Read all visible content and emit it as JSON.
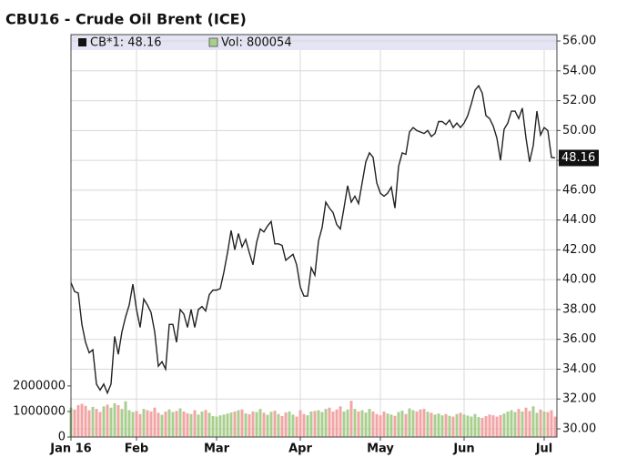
{
  "chart_data": {
    "type": "line",
    "title": "CBU16 - Crude Oil Brent (ICE)",
    "x": [
      0,
      1,
      2,
      3,
      4,
      5,
      6,
      7,
      8,
      9,
      10,
      11,
      12,
      13,
      14,
      15,
      16,
      17,
      18,
      19,
      20,
      21,
      22,
      23,
      24,
      25,
      26,
      27,
      28,
      29,
      30,
      31,
      32,
      33,
      34,
      35,
      36,
      37,
      38,
      39,
      40,
      41,
      42,
      43,
      44,
      45,
      46,
      47,
      48,
      49,
      50,
      51,
      52,
      53,
      54,
      55,
      56,
      57,
      58,
      59,
      60,
      61,
      62,
      63,
      64,
      65,
      66,
      67,
      68,
      69,
      70,
      71,
      72,
      73,
      74,
      75,
      76,
      77,
      78,
      79,
      80,
      81,
      82,
      83,
      84,
      85,
      86,
      87,
      88,
      89,
      90,
      91,
      92,
      93,
      94,
      95,
      96,
      97,
      98,
      99,
      100,
      101,
      102,
      103,
      104,
      105,
      106,
      107,
      108,
      109,
      110,
      111,
      112,
      113,
      114,
      115,
      116,
      117,
      118,
      119,
      120,
      121,
      122,
      123,
      124,
      125,
      126,
      127,
      128,
      129,
      130,
      131,
      132,
      133
    ],
    "series": [
      {
        "name": "CB*1: 48.16",
        "color": "#222222",
        "values": [
          39.8,
          39.2,
          39.1,
          37.0,
          35.8,
          35.1,
          35.3,
          33.0,
          32.6,
          33.0,
          32.4,
          33.0,
          36.2,
          35.0,
          36.5,
          37.5,
          38.3,
          39.7,
          38.0,
          36.8,
          38.7,
          38.3,
          37.8,
          36.5,
          34.2,
          34.5,
          34.0,
          37.0,
          37.0,
          35.8,
          38.0,
          37.7,
          36.8,
          38.0,
          36.8,
          38.0,
          38.2,
          37.9,
          39.0,
          39.3,
          39.3,
          39.4,
          40.5,
          41.8,
          43.3,
          42.0,
          43.1,
          42.2,
          42.7,
          41.8,
          41.0,
          42.5,
          43.4,
          43.2,
          43.6,
          43.9,
          42.4,
          42.4,
          42.3,
          41.3,
          41.5,
          41.7,
          41.0,
          39.5,
          38.9,
          38.9,
          40.8,
          40.3,
          42.6,
          43.5,
          45.2,
          44.8,
          44.5,
          43.7,
          43.4,
          44.8,
          46.3,
          45.2,
          45.6,
          45.1,
          46.5,
          47.9,
          48.5,
          48.2,
          46.5,
          45.8,
          45.6,
          45.8,
          46.2,
          44.8,
          47.6,
          48.5,
          48.4,
          49.9,
          50.2,
          50.0,
          49.9,
          49.8,
          50.0,
          49.6,
          49.8,
          50.6,
          50.6,
          50.4,
          50.7,
          50.2,
          50.5,
          50.2,
          50.5,
          51.0,
          51.8,
          52.7,
          53.0,
          52.5,
          51.0,
          50.8,
          50.3,
          49.5,
          48.0,
          50.1,
          50.5,
          51.3,
          51.3,
          50.8,
          51.5,
          49.5,
          47.9,
          49.0,
          51.3,
          49.7,
          50.2,
          50.0,
          48.2,
          48.16
        ]
      },
      {
        "name": "Vol: 800054",
        "type": "bar",
        "axis": "y2",
        "up_color": "#a9cf8f",
        "down_color": "#f2a5a5",
        "values": [
          1150000,
          1080000,
          1250000,
          1300000,
          1220000,
          1050000,
          1180000,
          1100000,
          980000,
          1200000,
          1270000,
          1150000,
          1320000,
          1250000,
          1100000,
          1400000,
          1050000,
          980000,
          1020000,
          900000,
          1100000,
          1050000,
          1000000,
          1150000,
          950000,
          870000,
          1000000,
          1080000,
          980000,
          1020000,
          1120000,
          1000000,
          930000,
          900000,
          1050000,
          880000,
          1000000,
          1060000,
          950000,
          820000,
          800000,
          850000,
          880000,
          920000,
          960000,
          1000000,
          1050000,
          1080000,
          930000,
          890000,
          1000000,
          980000,
          1100000,
          950000,
          870000,
          990000,
          1030000,
          900000,
          820000,
          960000,
          1000000,
          880000,
          800000,
          1050000,
          900000,
          850000,
          1000000,
          1020000,
          1050000,
          980000,
          1100000,
          1150000,
          1000000,
          1080000,
          1200000,
          1000000,
          1080000,
          1420000,
          1100000,
          1000000,
          1050000,
          960000,
          1100000,
          1000000,
          900000,
          850000,
          1000000,
          920000,
          880000,
          830000,
          980000,
          1030000,
          900000,
          1120000,
          1050000,
          1000000,
          1080000,
          1100000,
          990000,
          950000,
          880000,
          920000,
          850000,
          900000,
          830000,
          800000,
          900000,
          950000,
          880000,
          840000,
          800000,
          900000,
          780000,
          750000,
          820000,
          880000,
          850000,
          800000,
          860000,
          920000,
          1000000,
          1050000,
          980000,
          1100000,
          1000000,
          1150000,
          1020000,
          1200000,
          950000,
          1080000,
          1000000,
          980000,
          1050000,
          800054
        ]
      }
    ],
    "xlim": [
      0,
      133.5
    ],
    "xticks": [
      {
        "value": 0,
        "label": "Jan 16"
      },
      {
        "value": 18,
        "label": "Feb"
      },
      {
        "value": 40,
        "label": "Mar"
      },
      {
        "value": 63,
        "label": "Apr"
      },
      {
        "value": 85,
        "label": "May"
      },
      {
        "value": 108,
        "label": "Jun"
      },
      {
        "value": 130,
        "label": "Jul"
      }
    ],
    "ylim": [
      29.45,
      56.43
    ],
    "yticks": [
      {
        "value": 30,
        "label": "30.00"
      },
      {
        "value": 32,
        "label": "32.00"
      },
      {
        "value": 34,
        "label": "34.00"
      },
      {
        "value": 36,
        "label": "36.00"
      },
      {
        "value": 38,
        "label": "38.00"
      },
      {
        "value": 40,
        "label": "40.00"
      },
      {
        "value": 42,
        "label": "42.00"
      },
      {
        "value": 44,
        "label": "44.00"
      },
      {
        "value": 46,
        "label": "46.00"
      },
      {
        "value": 48,
        "label": "48.00"
      },
      {
        "value": 50,
        "label": "50.00"
      },
      {
        "value": 52,
        "label": "52.00"
      },
      {
        "value": 54,
        "label": "54.00"
      },
      {
        "value": 56,
        "label": "56.00"
      }
    ],
    "y2lim": [
      0,
      15750000
    ],
    "y2ticks": [
      0,
      1000000,
      2000000
    ],
    "grid": true
  }
}
